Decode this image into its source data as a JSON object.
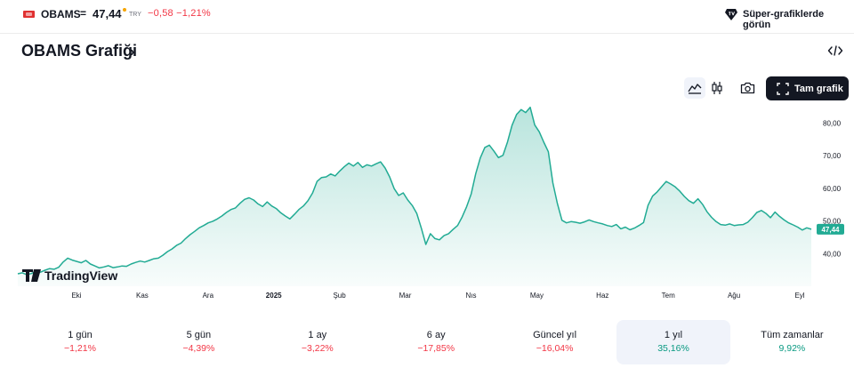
{
  "header": {
    "symbol": "OBAMS",
    "equals": "=",
    "price": "47,44",
    "currency": "TRY",
    "change": "−0,58 −1,21%",
    "super_charts_label": "Süper-grafiklerde görün",
    "flag_color": "#e03131"
  },
  "title": {
    "text": "OBAMS Grafiği",
    "chevron": "›"
  },
  "toolbar": {
    "fullscreen_label": "Tam grafik",
    "icons": [
      "area-chart-icon",
      "candles-icon",
      "camera-icon",
      "fullscreen-icon",
      "embed-code-icon"
    ]
  },
  "chart_data": {
    "type": "area",
    "title": "",
    "xlabel": "",
    "ylabel": "",
    "x_labels": [
      "Eki",
      "Kas",
      "Ara",
      "2025",
      "Şub",
      "Mar",
      "Nıs",
      "May",
      "Haz",
      "Tem",
      "Ağu",
      "Eyl"
    ],
    "y_ticks": [
      "40,00",
      "50,00",
      "60,00",
      "70,00",
      "80,00"
    ],
    "ylim": [
      30,
      85
    ],
    "last_value": 47.44,
    "last_label": "47,44",
    "watermark": "TradingView",
    "line_color": "#22ab94",
    "series": [
      {
        "values": [
          33.8,
          34.1,
          33.5,
          33.9,
          34.6,
          34.3,
          34.9,
          35.4,
          35.2,
          35.8,
          37.4,
          38.6,
          38.0,
          37.6,
          37.2,
          37.9,
          36.8,
          36.2,
          35.6,
          35.9,
          36.3,
          35.7,
          35.9,
          36.2,
          36.1,
          36.8,
          37.3,
          37.7,
          37.4,
          37.9,
          38.4,
          38.6,
          39.5,
          40.6,
          41.4,
          42.5,
          43.2,
          44.6,
          45.8,
          46.8,
          47.9,
          48.6,
          49.4,
          49.9,
          50.6,
          51.5,
          52.6,
          53.5,
          54.0,
          55.4,
          56.6,
          57.1,
          56.4,
          55.2,
          54.4,
          55.8,
          54.6,
          53.8,
          52.5,
          51.5,
          50.6,
          52.0,
          53.5,
          54.6,
          56.2,
          58.5,
          62.1,
          63.3,
          63.5,
          64.4,
          63.8,
          65.3,
          66.6,
          67.7,
          66.8,
          67.9,
          66.4,
          67.2,
          66.8,
          67.5,
          68.1,
          66.2,
          63.5,
          59.9,
          57.8,
          58.6,
          56.4,
          54.7,
          52.3,
          47.8,
          42.8,
          46.1,
          44.6,
          44.2,
          45.5,
          46.1,
          47.4,
          48.6,
          51.2,
          54.4,
          58.3,
          64.5,
          69.3,
          72.5,
          73.2,
          71.4,
          69.4,
          70.1,
          74.2,
          79.3,
          82.6,
          84.1,
          83.2,
          84.8,
          79.4,
          77.3,
          74.1,
          71.2,
          61.6,
          55.3,
          50.2,
          49.4,
          49.8,
          49.6,
          49.3,
          49.7,
          50.3,
          49.8,
          49.4,
          49.1,
          48.6,
          48.3,
          48.9,
          47.6,
          48.1,
          47.3,
          47.8,
          48.6,
          49.5,
          54.8,
          57.6,
          58.9,
          60.5,
          62.1,
          61.3,
          60.4,
          59.1,
          57.5,
          56.2,
          55.4,
          56.8,
          55.1,
          52.8,
          51.1,
          49.8,
          48.9,
          48.7,
          49.1,
          48.6,
          48.8,
          48.9,
          49.6,
          51.0,
          52.6,
          53.2,
          52.3,
          51.0,
          52.7,
          51.4,
          50.3,
          49.4,
          48.8,
          48.1,
          47.2,
          47.9,
          47.44
        ]
      }
    ]
  },
  "periods": [
    {
      "label": "1 gün",
      "value": "−1,21%",
      "trend": "neg",
      "selected": false
    },
    {
      "label": "5 gün",
      "value": "−4,39%",
      "trend": "neg",
      "selected": false
    },
    {
      "label": "1 ay",
      "value": "−3,22%",
      "trend": "neg",
      "selected": false
    },
    {
      "label": "6 ay",
      "value": "−17,85%",
      "trend": "neg",
      "selected": false
    },
    {
      "label": "Güncel yıl",
      "value": "−16,04%",
      "trend": "neg",
      "selected": false
    },
    {
      "label": "1 yıl",
      "value": "35,16%",
      "trend": "pos",
      "selected": true
    },
    {
      "label": "Tüm zamanlar",
      "value": "9,92%",
      "trend": "pos",
      "selected": false
    }
  ]
}
